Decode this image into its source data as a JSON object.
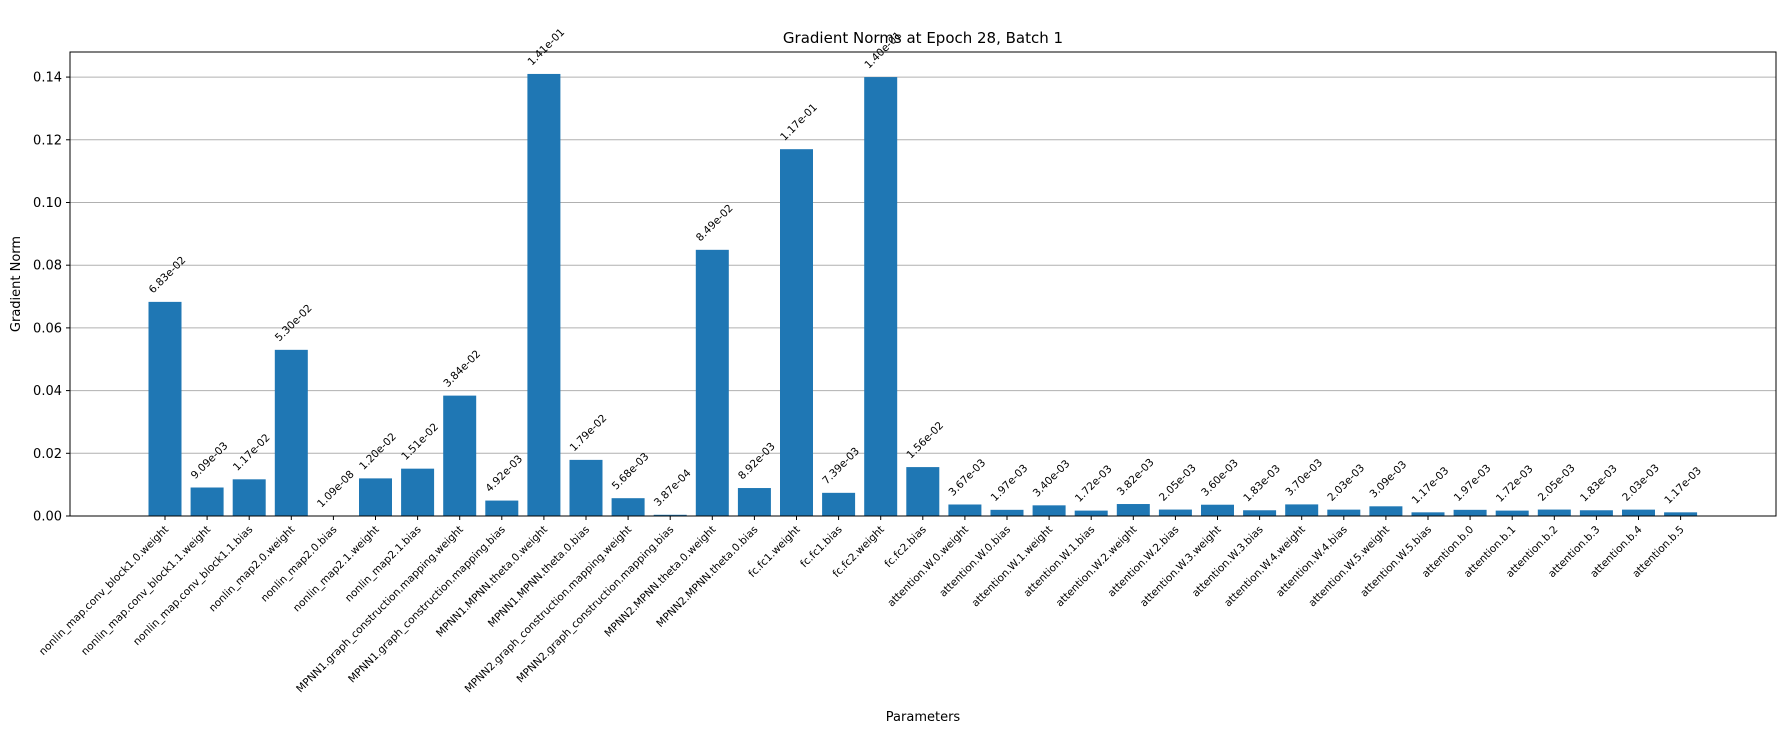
{
  "chart_data": {
    "type": "bar",
    "title": "Gradient Norms at Epoch 28, Batch 1",
    "xlabel": "Parameters",
    "ylabel": "Gradient Norm",
    "ylim": [
      0,
      0.148
    ],
    "yticks": [
      "0.00",
      "0.02",
      "0.04",
      "0.06",
      "0.08",
      "0.10",
      "0.12",
      "0.14"
    ],
    "grid": "y",
    "bar_color": "#1f77b4",
    "categories": [
      "nonlin_map.conv_block1.0.weight",
      "nonlin_map.conv_block1.1.weight",
      "nonlin_map.conv_block1.1.bias",
      "nonlin_map2.0.weight",
      "nonlin_map2.0.bias",
      "nonlin_map2.1.weight",
      "nonlin_map2.1.bias",
      "MPNN1.graph_construction.mapping.weight",
      "MPNN1.graph_construction.mapping.bias",
      "MPNN1.MPNN.theta.0.weight",
      "MPNN1.MPNN.theta.0.bias",
      "MPNN2.graph_construction.mapping.weight",
      "MPNN2.graph_construction.mapping.bias",
      "MPNN2.MPNN.theta.0.weight",
      "MPNN2.MPNN.theta.0.bias",
      "fc.fc1.weight",
      "fc.fc1.bias",
      "fc.fc2.weight",
      "fc.fc2.bias",
      "attention.W.0.weight",
      "attention.W.0.bias",
      "attention.W.1.weight",
      "attention.W.1.bias",
      "attention.W.2.weight",
      "attention.W.2.bias",
      "attention.W.3.weight",
      "attention.W.3.bias",
      "attention.W.4.weight",
      "attention.W.4.bias",
      "attention.W.5.weight",
      "attention.W.5.bias",
      "attention.b.0",
      "attention.b.1",
      "attention.b.2",
      "attention.b.3",
      "attention.b.4",
      "attention.b.5"
    ],
    "values": [
      0.0683,
      0.00909,
      0.0117,
      0.053,
      1.09e-08,
      0.012,
      0.0151,
      0.0384,
      0.00492,
      0.141,
      0.0179,
      0.00568,
      0.000387,
      0.0849,
      0.00892,
      0.117,
      0.00739,
      0.14,
      0.0156,
      0.00367,
      0.00197,
      0.0034,
      0.00172,
      0.00382,
      0.00205,
      0.0036,
      0.00183,
      0.0037,
      0.00203,
      0.00309,
      0.00117,
      0.00197,
      0.00172,
      0.00205,
      0.00183,
      0.00203,
      0.00117
    ],
    "value_labels": [
      "6.83e-02",
      "9.09e-03",
      "1.17e-02",
      "5.30e-02",
      "1.09e-08",
      "1.20e-02",
      "1.51e-02",
      "3.84e-02",
      "4.92e-03",
      "1.41e-01",
      "1.79e-02",
      "5.68e-03",
      "3.87e-04",
      "8.49e-02",
      "8.92e-03",
      "1.17e-01",
      "7.39e-03",
      "1.40e-01",
      "1.56e-02",
      "3.67e-03",
      "1.97e-03",
      "3.40e-03",
      "1.72e-03",
      "3.82e-03",
      "2.05e-03",
      "3.60e-03",
      "1.83e-03",
      "3.70e-03",
      "2.03e-03",
      "3.09e-03",
      "1.17e-03",
      "1.97e-03",
      "1.72e-03",
      "2.05e-03",
      "1.83e-03",
      "2.03e-03",
      "1.17e-03"
    ]
  }
}
